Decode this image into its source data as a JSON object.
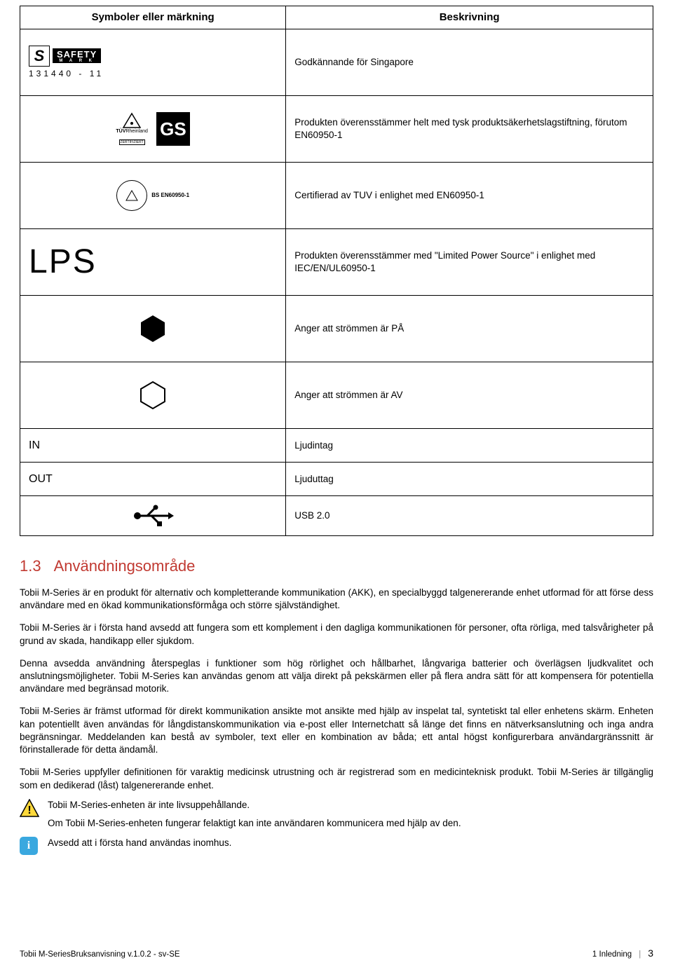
{
  "table": {
    "headers": {
      "symbol": "Symboler eller märkning",
      "desc": "Beskrivning"
    },
    "rows": [
      {
        "symbol_kind": "safety",
        "safety_brand": "SAFETY",
        "safety_mark": "M A R K",
        "safety_num": "131440 - 11",
        "desc": "Godkännande för Singapore"
      },
      {
        "symbol_kind": "tuvgs",
        "tuv_brand": "TÜVRheinland",
        "tuv_zert": "ZERTIFIZIERT",
        "gs": "GS",
        "desc": "Produkten överensstämmer helt med tysk produktsäkerhetslagstiftning, förutom EN60950-1"
      },
      {
        "symbol_kind": "tuvbs",
        "bs_en": "BS EN60950-1",
        "desc": "Certifierad av TUV i enlighet med EN60950-1"
      },
      {
        "symbol_kind": "lps",
        "lps": "LPS",
        "desc": "Produkten överensstämmer med \"Limited Power Source\" i enlighet med IEC/EN/UL60950-1"
      },
      {
        "symbol_kind": "hexfill",
        "desc": "Anger att strömmen är PÅ"
      },
      {
        "symbol_kind": "hexout",
        "desc": "Anger att strömmen är AV"
      },
      {
        "symbol_kind": "text",
        "symbol_text": "IN",
        "desc": "Ljudintag"
      },
      {
        "symbol_kind": "text",
        "symbol_text": "OUT",
        "desc": "Ljuduttag"
      },
      {
        "symbol_kind": "usb",
        "desc": "USB 2.0"
      }
    ],
    "hex_fill_color": "#000000",
    "hex_stroke_color": "#000000"
  },
  "section": {
    "num": "1.3",
    "title": "Användningsområde"
  },
  "paras": [
    "Tobii M-Series är en produkt för alternativ och kompletterande kommunikation (AKK), en specialbyggd talgenererande enhet utformad för att förse dess användare med en ökad kommunikationsförmåga och större självständighet.",
    "Tobii M-Series är i första hand avsedd att fungera som ett komplement i den dagliga kommunikationen för personer, ofta rörliga, med talsvårigheter på grund av skada, handikapp eller sjukdom.",
    "Denna avsedda användning återspeglas i funktioner som hög rörlighet och hållbarhet, långvariga batterier och överlägsen ljudkvalitet och anslutningsmöjligheter. Tobii M-Series kan användas genom att välja direkt på pekskärmen eller på flera andra sätt för att kompensera för potentiella användare med begränsad motorik.",
    "Tobii M-Series är främst utformad för direkt kommunikation ansikte mot ansikte med hjälp av inspelat tal, syntetiskt tal eller enhetens skärm. Enheten kan potentiellt även användas för långdistanskommunikation via e-post eller Internetchatt så länge det finns en nätverksanslutning och inga andra begränsningar. Meddelanden kan bestå av symboler, text eller en kombination av båda; ett antal högst konfigurerbara användargränssnitt är förinstallerade för detta ändamål.",
    "Tobii M-Series uppfyller definitionen för varaktig medicinsk utrustning och är registrerad som en medicinteknisk produkt. Tobii M-Series är tillgänglig som en dedikerad (låst) talgenererande enhet."
  ],
  "warning": {
    "line1": "Tobii M-Series-enheten är inte livsuppehållande.",
    "line2": "Om Tobii M-Series-enheten fungerar felaktigt kan inte användaren kommunicera med hjälp av den."
  },
  "info": {
    "text": "Avsedd att i första hand användas inomhus."
  },
  "colors": {
    "heading": "#c13a32",
    "warn_fill": "#ffd93b",
    "warn_stroke": "#000000",
    "info_fill": "#3aa8df"
  },
  "footer": {
    "left": "Tobii M-SeriesBruksanvisning v.1.0.2 - sv-SE",
    "chapter": "1 Inledning",
    "page": "3"
  }
}
